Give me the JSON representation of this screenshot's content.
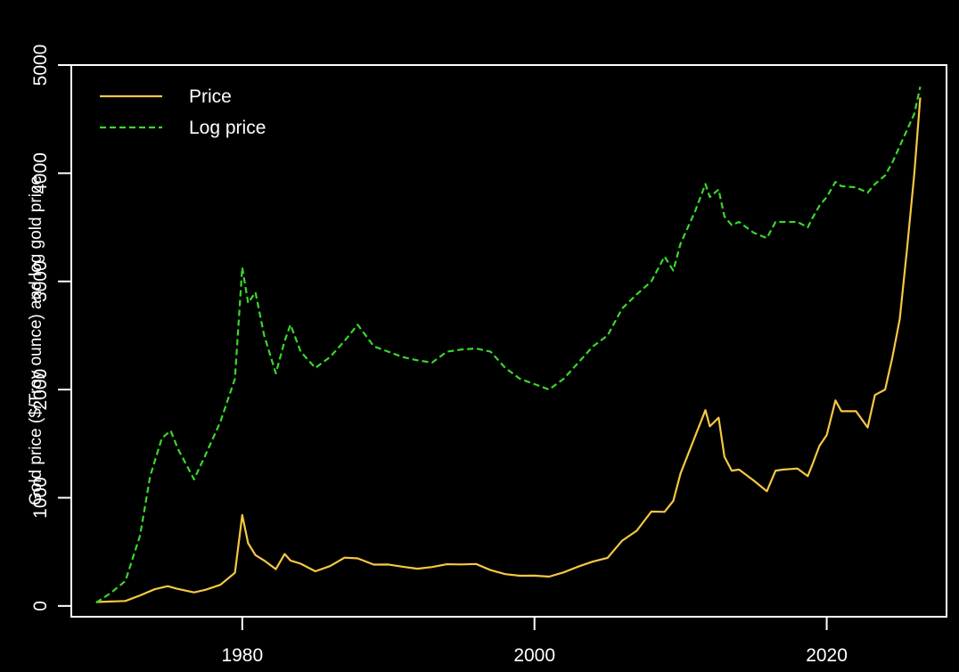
{
  "chart_data": {
    "type": "line",
    "title": "",
    "xlabel": "",
    "ylabel": "Gold price ($/Troy ounce) and log gold price",
    "xlim": [
      1968.3,
      2028.2
    ],
    "ylim": [
      -100,
      5000
    ],
    "x_ticks": [
      1980,
      2000,
      2020
    ],
    "x_tick_labels": [
      "1980",
      "2000",
      "2020"
    ],
    "y_ticks": [
      0,
      1000,
      2000,
      3000,
      4000,
      5000
    ],
    "y_tick_labels": [
      "0",
      "1000",
      "2000",
      "3000",
      "4000",
      "5000"
    ],
    "grid": false,
    "legend_position": "top-left",
    "series": [
      {
        "name": "Price",
        "color": "#f5c842",
        "line_style": "solid",
        "x": [
          1970.0,
          1972.0,
          1973.0,
          1974.0,
          1974.9,
          1975.5,
          1976.7,
          1977.5,
          1978.5,
          1979.5,
          1980.0,
          1980.4,
          1980.9,
          1981.5,
          1982.3,
          1982.9,
          1983.3,
          1984.0,
          1985.0,
          1986.0,
          1987.0,
          1987.9,
          1989.0,
          1990.0,
          1991.0,
          1992.0,
          1993.0,
          1994.0,
          1995.0,
          1996.0,
          1997.0,
          1998.0,
          1999.0,
          2000.0,
          2001.0,
          2002.0,
          2003.0,
          2004.0,
          2005.0,
          2006.0,
          2007.0,
          2008.0,
          2008.9,
          2009.5,
          2010.0,
          2011.0,
          2011.7,
          2012.0,
          2012.6,
          2013.0,
          2013.5,
          2014.0,
          2015.0,
          2015.9,
          2016.5,
          2017.0,
          2018.0,
          2018.7,
          2019.0,
          2019.5,
          2020.0,
          2020.6,
          2021.0,
          2022.0,
          2022.8,
          2023.3,
          2024.0,
          2024.5,
          2025.0,
          2025.5,
          2026.0,
          2026.4
        ],
        "y": [
          36,
          46,
          97,
          154,
          183,
          160,
          125,
          150,
          195,
          306,
          840,
          580,
          470,
          420,
          340,
          480,
          420,
          390,
          320,
          368,
          446,
          440,
          382,
          383,
          362,
          344,
          360,
          385,
          384,
          388,
          331,
          294,
          279,
          280,
          271,
          310,
          364,
          410,
          445,
          604,
          695,
          872,
          870,
          970,
          1225,
          1570,
          1810,
          1660,
          1740,
          1380,
          1250,
          1260,
          1160,
          1060,
          1250,
          1260,
          1270,
          1200,
          1300,
          1480,
          1580,
          1900,
          1800,
          1800,
          1650,
          1950,
          2000,
          2300,
          2650,
          3300,
          4000,
          4700
        ]
      },
      {
        "name": "Log price",
        "color": "#3bd62f",
        "line_style": "dashed",
        "x": [
          1970.0,
          1971.0,
          1972.0,
          1973.0,
          1973.7,
          1974.5,
          1975.1,
          1975.6,
          1976.2,
          1976.7,
          1977.5,
          1978.5,
          1979.5,
          1980.0,
          1980.4,
          1980.9,
          1981.5,
          1982.3,
          1982.9,
          1983.3,
          1984.0,
          1985.0,
          1986.0,
          1987.0,
          1987.9,
          1989.0,
          1990.0,
          1991.0,
          1992.0,
          1993.0,
          1994.0,
          1995.0,
          1996.0,
          1997.0,
          1998.0,
          1999.0,
          2000.0,
          2001.0,
          2002.0,
          2003.0,
          2004.0,
          2005.0,
          2006.0,
          2007.0,
          2008.0,
          2008.9,
          2009.5,
          2010.0,
          2011.0,
          2011.7,
          2012.0,
          2012.6,
          2013.0,
          2013.5,
          2014.0,
          2015.0,
          2015.9,
          2016.5,
          2017.0,
          2018.0,
          2018.7,
          2019.0,
          2019.5,
          2020.0,
          2020.6,
          2021.0,
          2022.0,
          2022.8,
          2023.3,
          2024.0,
          2024.5,
          2025.0,
          2025.5,
          2026.0,
          2026.4
        ],
        "y": [
          30,
          120,
          230,
          650,
          1200,
          1550,
          1620,
          1450,
          1300,
          1170,
          1400,
          1700,
          2100,
          3130,
          2800,
          2900,
          2500,
          2150,
          2450,
          2600,
          2350,
          2200,
          2300,
          2450,
          2600,
          2400,
          2350,
          2300,
          2270,
          2250,
          2350,
          2370,
          2380,
          2350,
          2200,
          2100,
          2050,
          2000,
          2100,
          2250,
          2400,
          2500,
          2750,
          2880,
          3000,
          3230,
          3100,
          3350,
          3650,
          3900,
          3780,
          3850,
          3600,
          3520,
          3550,
          3450,
          3400,
          3550,
          3550,
          3550,
          3500,
          3580,
          3700,
          3780,
          3920,
          3880,
          3870,
          3820,
          3900,
          3980,
          4100,
          4250,
          4400,
          4550,
          4800
        ]
      }
    ]
  }
}
